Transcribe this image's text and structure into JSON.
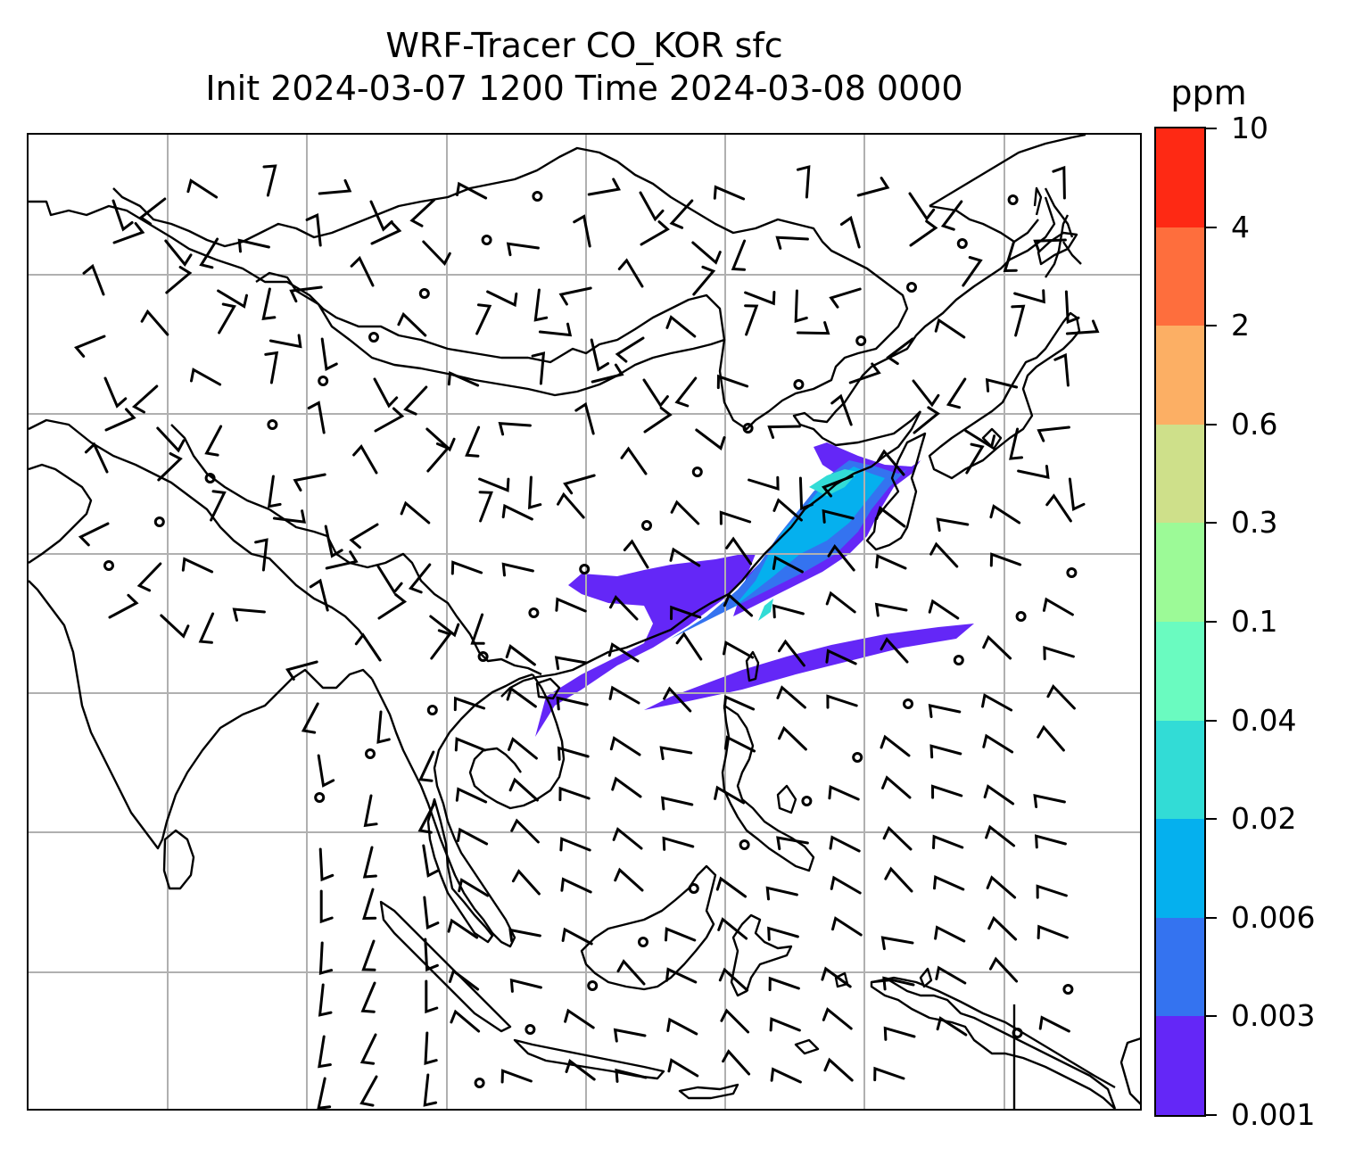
{
  "title": {
    "line1": "WRF-Tracer CO_KOR sfc",
    "line2": "Init 2024-03-07 1200 Time 2024-03-08 0000"
  },
  "colorbar": {
    "unit": "ppm",
    "tick_labels": [
      "0.001",
      "0.003",
      "0.006",
      "0.02",
      "0.04",
      "0.1",
      "0.3",
      "0.6",
      "2",
      "4",
      "10"
    ],
    "colors": [
      "#6427f7",
      "#3473f0",
      "#05b0ee",
      "#32dcd6",
      "#6afbc0",
      "#9cfa97",
      "#cee08a",
      "#fcaf64",
      "#fe6e3d",
      "#fe2914"
    ]
  },
  "map": {
    "gridlines": true,
    "coastline_color": "#000000",
    "gridline_color": "#b0b0b0",
    "wind_barbs": true
  }
}
